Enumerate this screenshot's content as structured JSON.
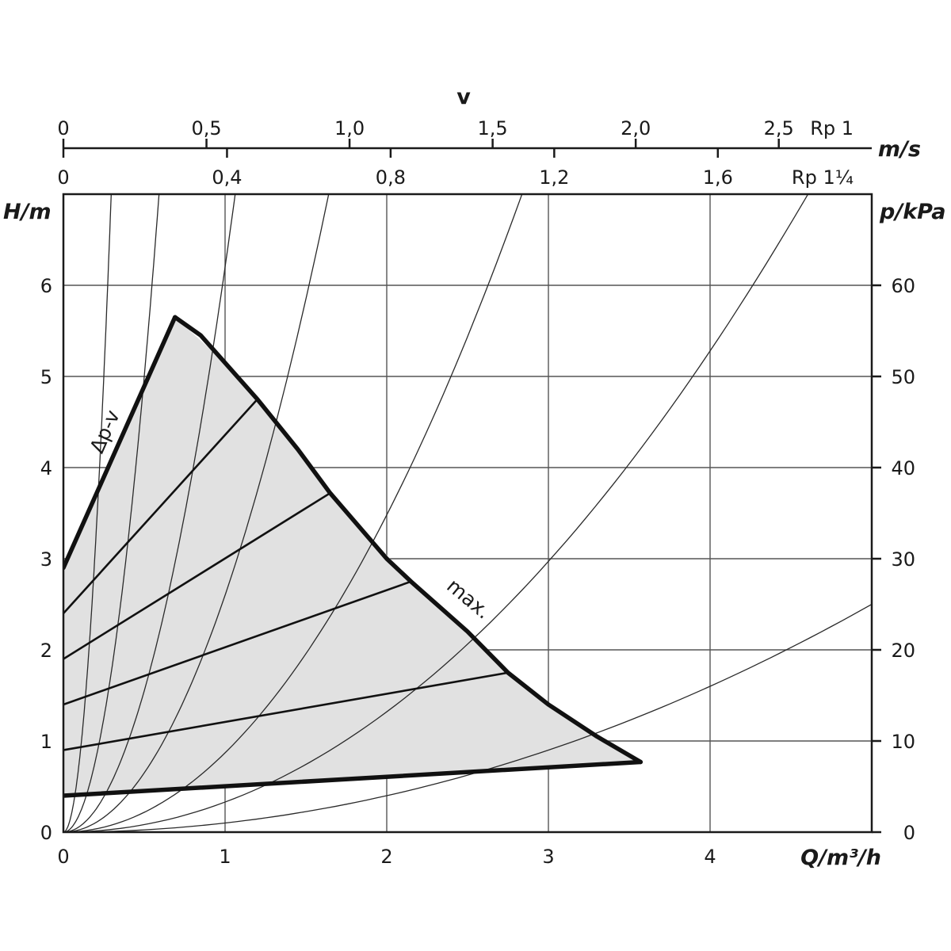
{
  "chart_data": {
    "type": "line",
    "title": "",
    "xlabel": "Q/m³/h",
    "ylabel": "H/m",
    "y2label": "p/kPa",
    "xlim": [
      0,
      5
    ],
    "ylim": [
      0,
      7
    ],
    "y2lim": [
      0,
      70
    ],
    "grid": true,
    "x_ticks": [
      "0",
      "1",
      "2",
      "3",
      "4"
    ],
    "y_ticks": [
      "0",
      "1",
      "2",
      "3",
      "4",
      "5",
      "6"
    ],
    "y2_ticks": [
      "0",
      "10",
      "20",
      "30",
      "40",
      "50",
      "60"
    ],
    "velocity_axis": {
      "title": "v",
      "unit": "m/s",
      "pipes": [
        {
          "name": "Rp 1",
          "ticks": [
            {
              "label": "0",
              "v": 0
            },
            {
              "label": "0,5",
              "v": 0.5
            },
            {
              "label": "1,0",
              "v": 1.0
            },
            {
              "label": "1,5",
              "v": 1.5
            },
            {
              "label": "2,0",
              "v": 2.0
            },
            {
              "label": "2,5",
              "v": 2.5
            }
          ],
          "q_per_v": 1.77
        },
        {
          "name": "Rp 1¼",
          "ticks": [
            {
              "label": "0",
              "v": 0
            },
            {
              "label": "0,4",
              "v": 0.4
            },
            {
              "label": "0,8",
              "v": 0.8
            },
            {
              "label": "1,2",
              "v": 1.2
            },
            {
              "label": "1,6",
              "v": 1.6
            }
          ],
          "q_per_v": 2.53
        }
      ]
    },
    "envelope": [
      {
        "x": 0,
        "y": 2.9
      },
      {
        "x": 0.69,
        "y": 5.65
      },
      {
        "x": 1.0,
        "y": 5.15
      },
      {
        "x": 1.2,
        "y": 4.75
      },
      {
        "x": 1.65,
        "y": 3.72
      },
      {
        "x": 2.15,
        "y": 2.75
      },
      {
        "x": 2.75,
        "y": 1.75
      },
      {
        "x": 3.0,
        "y": 1.4
      },
      {
        "x": 3.57,
        "y": 0.77
      },
      {
        "x": 0,
        "y": 0.4
      }
    ],
    "series": [
      {
        "name": "max.",
        "points": [
          {
            "x": 0.69,
            "y": 5.65
          },
          {
            "x": 0.85,
            "y": 5.45
          },
          {
            "x": 1.0,
            "y": 5.15
          },
          {
            "x": 1.2,
            "y": 4.75
          },
          {
            "x": 1.45,
            "y": 4.2
          },
          {
            "x": 1.65,
            "y": 3.72
          },
          {
            "x": 2.0,
            "y": 3.0
          },
          {
            "x": 2.15,
            "y": 2.75
          },
          {
            "x": 2.5,
            "y": 2.2
          },
          {
            "x": 2.75,
            "y": 1.75
          },
          {
            "x": 3.0,
            "y": 1.4
          },
          {
            "x": 3.3,
            "y": 1.05
          },
          {
            "x": 3.57,
            "y": 0.77
          }
        ]
      },
      {
        "name": "Δp-v",
        "points": [
          {
            "x": 0,
            "y": 2.9
          },
          {
            "x": 0.69,
            "y": 5.65
          }
        ]
      },
      {
        "name": "",
        "points": [
          {
            "x": 0,
            "y": 2.4
          },
          {
            "x": 1.2,
            "y": 4.75
          }
        ]
      },
      {
        "name": "",
        "points": [
          {
            "x": 0,
            "y": 1.9
          },
          {
            "x": 1.65,
            "y": 3.72
          }
        ]
      },
      {
        "name": "",
        "points": [
          {
            "x": 0,
            "y": 1.4
          },
          {
            "x": 2.15,
            "y": 2.75
          }
        ]
      },
      {
        "name": "",
        "points": [
          {
            "x": 0,
            "y": 0.9
          },
          {
            "x": 2.75,
            "y": 1.75
          }
        ]
      },
      {
        "name": "",
        "points": [
          {
            "x": 0,
            "y": 0.4
          },
          {
            "x": 3.57,
            "y": 0.77
          }
        ]
      }
    ],
    "system_curves": [
      {
        "k": 80
      },
      {
        "k": 20
      },
      {
        "k": 6.2
      },
      {
        "k": 2.6
      },
      {
        "k": 0.87
      },
      {
        "k": 0.33
      },
      {
        "k": 0.1
      }
    ],
    "annotations": [
      {
        "text": "Δp-v"
      },
      {
        "text": "max."
      }
    ]
  }
}
